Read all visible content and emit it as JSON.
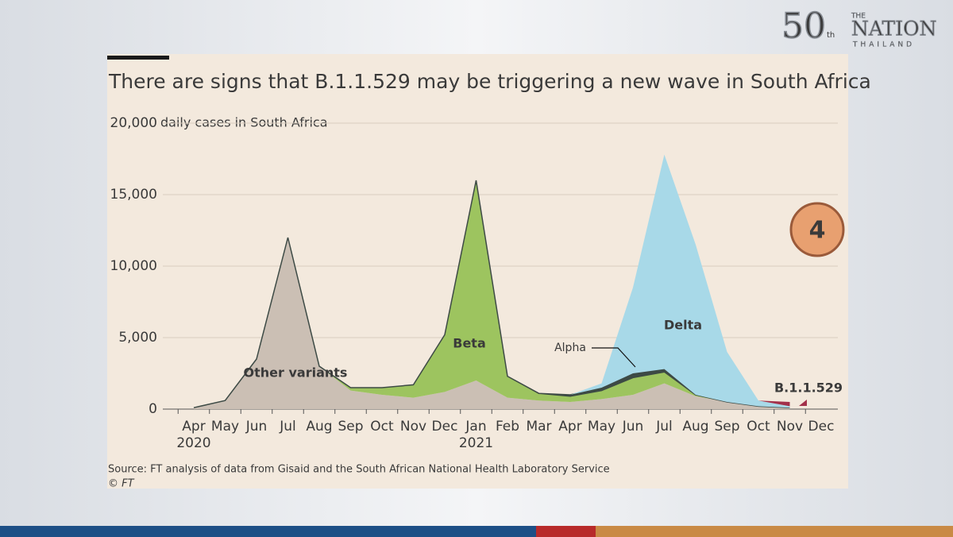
{
  "header": {
    "logo_number": "50",
    "logo_suffix": "th",
    "logo_the": "THE",
    "logo_name": "NATION",
    "logo_country": "THAILAND"
  },
  "badge": "4",
  "chart_data": {
    "type": "stacked_area",
    "title": "There are signs that B.1.1.529 may be triggering a new wave in South Africa",
    "y_label": "daily cases in South Africa",
    "source": "Source: FT analysis of data from Gisaid and the South African National Health Laboratory Service",
    "credit": "© FT",
    "categories": [
      "Apr",
      "May",
      "Jun",
      "Jul",
      "Aug",
      "Sep",
      "Oct",
      "Nov",
      "Dec",
      "Jan",
      "Feb",
      "Mar",
      "Apr",
      "May",
      "Jun",
      "Jul",
      "Aug",
      "Sep",
      "Oct",
      "Nov",
      "Dec"
    ],
    "x_years": [
      "2020",
      null,
      null,
      null,
      null,
      null,
      null,
      null,
      null,
      "2021",
      null,
      null,
      null,
      null,
      null,
      null,
      null,
      null,
      null,
      null,
      null
    ],
    "series": [
      {
        "name": "Other variants",
        "color": "#cbbfb4",
        "values": [
          100,
          600,
          3500,
          12000,
          3000,
          1300,
          1000,
          800,
          1200,
          2000,
          800,
          600,
          500,
          700,
          1000,
          1800,
          900,
          500,
          200,
          100,
          null
        ]
      },
      {
        "name": "Beta",
        "color": "#9dc45f",
        "values": [
          0,
          0,
          0,
          0,
          0,
          200,
          500,
          900,
          4000,
          14000,
          1500,
          500,
          400,
          600,
          1200,
          800,
          100,
          0,
          0,
          0,
          null
        ]
      },
      {
        "name": "Alpha",
        "color": "#3d4a45",
        "values": [
          0,
          0,
          0,
          0,
          0,
          0,
          0,
          0,
          0,
          0,
          0,
          0,
          100,
          200,
          300,
          200,
          0,
          0,
          0,
          0,
          null
        ]
      },
      {
        "name": "Delta",
        "color": "#a8d9e8",
        "values": [
          0,
          0,
          0,
          0,
          0,
          0,
          0,
          0,
          0,
          0,
          0,
          0,
          0,
          300,
          6000,
          15000,
          10500,
          3500,
          400,
          100,
          null
        ]
      },
      {
        "name": "B.1.1.529",
        "color": "#a2304a",
        "values": [
          0,
          0,
          0,
          0,
          0,
          0,
          0,
          0,
          0,
          0,
          0,
          0,
          0,
          0,
          0,
          0,
          0,
          0,
          0,
          300,
          null
        ]
      }
    ],
    "ylim": [
      0,
      20000
    ],
    "yticks": [
      0,
      {
        "value": 5000,
        "label": "5,000"
      },
      {
        "value": 10000,
        "label": "10,000"
      },
      {
        "value": 15000,
        "label": "15,000"
      },
      {
        "value": 20000,
        "label": "20,000"
      }
    ],
    "grid": true
  }
}
